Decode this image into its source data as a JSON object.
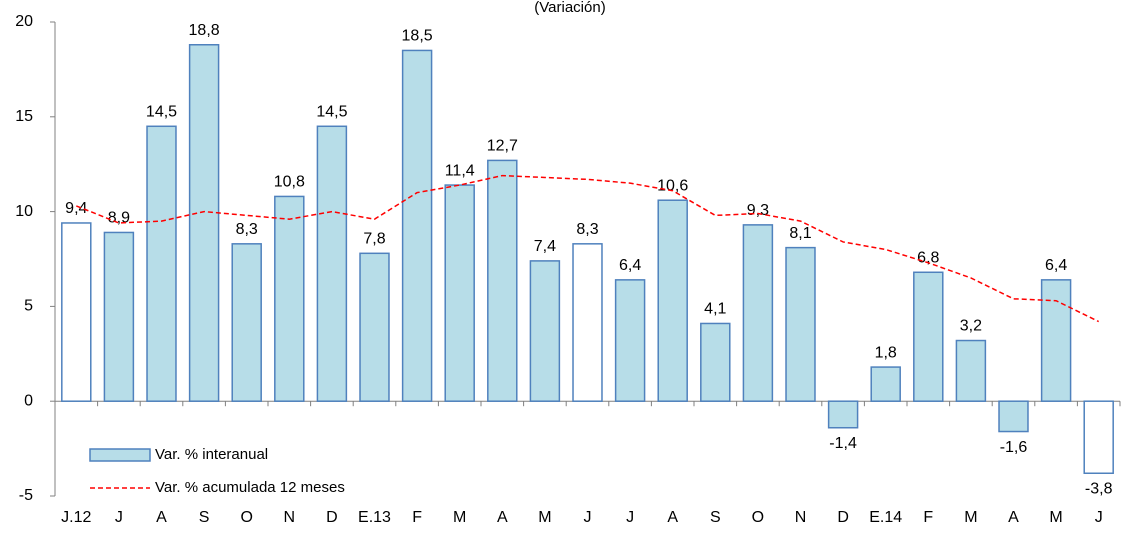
{
  "chart_data": {
    "type": "bar-line",
    "subtitle": "(Variación)",
    "categories": [
      "J.12",
      "J",
      "A",
      "S",
      "O",
      "N",
      "D",
      "E.13",
      "F",
      "M",
      "A",
      "M",
      "J",
      "J",
      "A",
      "S",
      "O",
      "N",
      "D",
      "E.14",
      "F",
      "M",
      "A",
      "M",
      "J"
    ],
    "series": [
      {
        "name": "Var. % interanual",
        "type": "bar",
        "color": "#b7dde8",
        "edge_color": "#4f81bd",
        "colors": [
          "#ffffff",
          "#b7dde8",
          "#b7dde8",
          "#b7dde8",
          "#b7dde8",
          "#b7dde8",
          "#b7dde8",
          "#b7dde8",
          "#b7dde8",
          "#b7dde8",
          "#b7dde8",
          "#b7dde8",
          "#ffffff",
          "#b7dde8",
          "#b7dde8",
          "#b7dde8",
          "#b7dde8",
          "#b7dde8",
          "#b7dde8",
          "#b7dde8",
          "#b7dde8",
          "#b7dde8",
          "#b7dde8",
          "#b7dde8",
          "#ffffff"
        ],
        "values": [
          9.4,
          8.9,
          14.5,
          18.8,
          8.3,
          10.8,
          14.5,
          7.8,
          18.5,
          11.4,
          12.7,
          7.4,
          8.3,
          6.4,
          10.6,
          4.1,
          9.3,
          8.1,
          -1.4,
          1.8,
          6.8,
          3.2,
          -1.6,
          6.4,
          -3.8
        ],
        "value_labels": [
          "9,4",
          "8,9",
          "14,5",
          "18,8",
          "8,3",
          "10,8",
          "14,5",
          "7,8",
          "18,5",
          "11,4",
          "12,7",
          "7,4",
          "8,3",
          "6,4",
          "10,6",
          "4,1",
          "9,3",
          "8,1",
          "-1,4",
          "1,8",
          "6,8",
          "3,2",
          "-1,6",
          "6,4",
          "-3,8"
        ]
      },
      {
        "name": "Var. % acumulada 12 meses",
        "type": "line",
        "color": "#ff0000",
        "values": [
          10.3,
          9.4,
          9.5,
          10.0,
          9.8,
          9.6,
          10.0,
          9.6,
          11.0,
          11.4,
          11.9,
          11.8,
          11.7,
          11.5,
          11.1,
          9.8,
          9.9,
          9.5,
          8.4,
          8.0,
          7.3,
          6.5,
          5.4,
          5.3,
          4.2
        ]
      }
    ],
    "ylim": [
      -5,
      20
    ],
    "yticks": [
      -5,
      0,
      5,
      10,
      15,
      20
    ],
    "grid": false
  }
}
